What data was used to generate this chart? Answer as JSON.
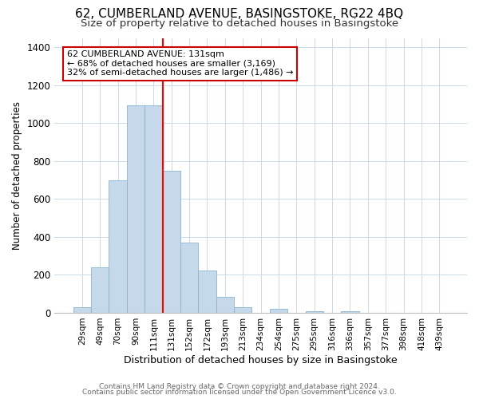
{
  "title": "62, CUMBERLAND AVENUE, BASINGSTOKE, RG22 4BQ",
  "subtitle": "Size of property relative to detached houses in Basingstoke",
  "xlabel": "Distribution of detached houses by size in Basingstoke",
  "ylabel": "Number of detached properties",
  "categories": [
    "29sqm",
    "49sqm",
    "70sqm",
    "90sqm",
    "111sqm",
    "131sqm",
    "152sqm",
    "172sqm",
    "193sqm",
    "213sqm",
    "234sqm",
    "254sqm",
    "275sqm",
    "295sqm",
    "316sqm",
    "336sqm",
    "357sqm",
    "377sqm",
    "398sqm",
    "418sqm",
    "439sqm"
  ],
  "values": [
    30,
    240,
    700,
    1095,
    1095,
    750,
    370,
    225,
    85,
    30,
    0,
    20,
    0,
    10,
    0,
    10,
    0,
    0,
    0,
    0,
    0
  ],
  "bar_color": "#c5d9ea",
  "bar_edge_color": "#8ab4cc",
  "redline_x": 4.5,
  "annotation_line1": "62 CUMBERLAND AVENUE: 131sqm",
  "annotation_line2": "← 68% of detached houses are smaller (3,169)",
  "annotation_line3": "32% of semi-detached houses are larger (1,486) →",
  "annotation_box_color": "#ffffff",
  "annotation_box_edge": "#cc0000",
  "ylim": [
    0,
    1450
  ],
  "yticks": [
    0,
    200,
    400,
    600,
    800,
    1000,
    1200,
    1400
  ],
  "footer_line1": "Contains HM Land Registry data © Crown copyright and database right 2024.",
  "footer_line2": "Contains public sector information licensed under the Open Government Licence v3.0.",
  "title_fontsize": 11,
  "subtitle_fontsize": 9.5,
  "background_color": "#ffffff",
  "grid_color": "#ccd9e8"
}
